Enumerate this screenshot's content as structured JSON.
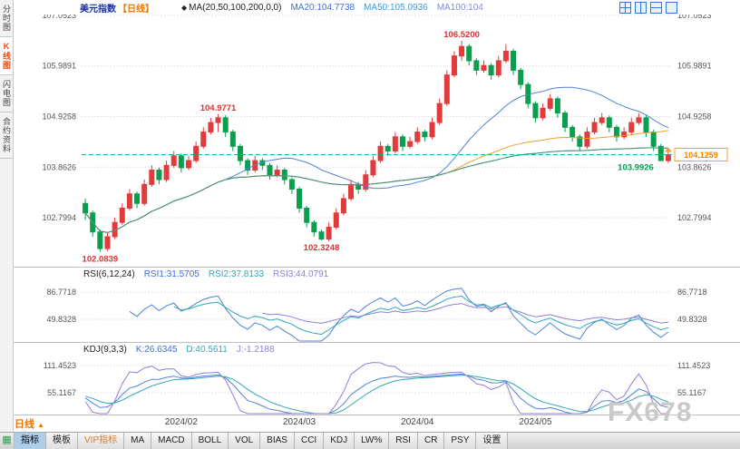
{
  "header": {
    "title": "美元指数",
    "period_tag": "【日线】",
    "ma_label": "MA(20,50,100,200,0,0)",
    "ma20": "MA20:104.7738",
    "ma50": "MA50:105.0936",
    "ma100": "MA100:104"
  },
  "sidebar": {
    "tabs": [
      {
        "label": "分时图",
        "active": false
      },
      {
        "label": "K线图",
        "active": true
      },
      {
        "label": "闪电图",
        "active": false
      },
      {
        "label": "合约资料",
        "active": false
      }
    ]
  },
  "indicators": {
    "rsi": {
      "title": "RSI(6,12,24)",
      "values": [
        "RSI1:31.5705",
        "RSI2:37.8133",
        "RSI3:44.0791"
      ]
    },
    "kdj": {
      "title": "KDJ(9,3,3)",
      "values": [
        "K:26.6345",
        "D:40.5611",
        "J:-1.2188"
      ]
    }
  },
  "footer": {
    "period_label": "日线",
    "watermark": "FX678"
  },
  "toolbar": {
    "tabs": [
      {
        "label": "指标",
        "active": true
      },
      {
        "label": "模板"
      },
      {
        "label": "VIP指标",
        "vip": true
      },
      {
        "label": "MA"
      },
      {
        "label": "MACD"
      },
      {
        "label": "BOLL"
      },
      {
        "label": "VOL"
      },
      {
        "label": "BIAS"
      },
      {
        "label": "CCI"
      },
      {
        "label": "KDJ"
      },
      {
        "label": "LW%"
      },
      {
        "label": "RSI"
      },
      {
        "label": "CR"
      },
      {
        "label": "PSY"
      },
      {
        "label": "设置"
      }
    ]
  },
  "chart_data": {
    "type": "candlestick",
    "title": "美元指数 日线",
    "y_ticks": [
      107.0523,
      105.9891,
      104.9258,
      103.8626,
      102.7994
    ],
    "rsi_ticks": [
      86.7718,
      49.8328
    ],
    "kdj_ticks": [
      111.4523,
      55.1167
    ],
    "x_ticks": [
      {
        "index": 13,
        "label": "2024/02"
      },
      {
        "index": 29,
        "label": "2024/03"
      },
      {
        "index": 45,
        "label": "2024/04"
      },
      {
        "index": 61,
        "label": "2024/05"
      }
    ],
    "current_price": 104.1259,
    "current_price_label": "104.1259",
    "annotations": [
      {
        "text": "106.5200",
        "index": 51,
        "price": 106.52,
        "color": "#e03030",
        "pos": "above"
      },
      {
        "text": "104.9771",
        "index": 18,
        "price": 104.9771,
        "color": "#e03030",
        "pos": "above"
      },
      {
        "text": "102.0839",
        "index": 2,
        "price": 102.0839,
        "color": "#e03030",
        "pos": "below"
      },
      {
        "text": "102.3248",
        "index": 32,
        "price": 102.3248,
        "color": "#e03030",
        "pos": "below"
      },
      {
        "text": "103.9926",
        "index": 78,
        "price": 103.9926,
        "color": "#00a050",
        "pos": "left"
      }
    ],
    "colors": {
      "up": "#e23b3b",
      "down": "#0a9e4e",
      "grid": "#dcdcdc",
      "axis_text": "#555555",
      "current": "#1aada0",
      "price_box": "#f0a030",
      "price_text": "#f08200",
      "ma": [
        "#4f82d8",
        "#f0a030",
        "#b06ad0",
        "#3a9a6a"
      ],
      "rsi": [
        "#4f82d8",
        "#30a8b8",
        "#8f7fd8"
      ],
      "kdj": [
        "#4f82d8",
        "#30a8b8",
        "#8f7fd8"
      ]
    },
    "ma_periods": [
      20,
      50,
      100,
      200
    ],
    "rsi_periods": [
      6,
      12,
      24
    ],
    "candles": [
      [
        103.1,
        103.2,
        102.75,
        102.9
      ],
      [
        102.9,
        102.95,
        102.4,
        102.5
      ],
      [
        102.5,
        102.55,
        102.0839,
        102.15
      ],
      [
        102.15,
        102.5,
        102.1,
        102.4
      ],
      [
        102.4,
        102.8,
        102.35,
        102.7
      ],
      [
        102.7,
        103.1,
        102.65,
        103.0
      ],
      [
        103.0,
        103.4,
        102.95,
        103.3
      ],
      [
        103.3,
        103.35,
        103.0,
        103.1
      ],
      [
        103.1,
        103.6,
        103.05,
        103.5
      ],
      [
        103.5,
        103.9,
        103.45,
        103.8
      ],
      [
        103.8,
        103.85,
        103.5,
        103.6
      ],
      [
        103.6,
        104.0,
        103.55,
        103.9
      ],
      [
        103.9,
        104.2,
        103.85,
        104.1
      ],
      [
        104.1,
        104.15,
        103.75,
        103.85
      ],
      [
        103.85,
        104.1,
        103.8,
        104.0
      ],
      [
        104.0,
        104.4,
        103.95,
        104.3
      ],
      [
        104.3,
        104.7,
        104.25,
        104.6
      ],
      [
        104.6,
        104.9,
        104.55,
        104.8
      ],
      [
        104.8,
        104.9771,
        104.6,
        104.9
      ],
      [
        104.9,
        104.95,
        104.5,
        104.6
      ],
      [
        104.6,
        104.65,
        104.2,
        104.3
      ],
      [
        104.3,
        104.35,
        103.9,
        104.0
      ],
      [
        104.0,
        104.05,
        103.7,
        103.8
      ],
      [
        103.8,
        104.1,
        103.75,
        104.0
      ],
      [
        104.0,
        104.05,
        103.8,
        103.9
      ],
      [
        103.9,
        103.95,
        103.6,
        103.7
      ],
      [
        103.7,
        103.9,
        103.65,
        103.8
      ],
      [
        103.8,
        103.85,
        103.5,
        103.6
      ],
      [
        103.6,
        103.65,
        103.3,
        103.4
      ],
      [
        103.4,
        103.45,
        102.9,
        103.0
      ],
      [
        103.0,
        103.05,
        102.6,
        102.7
      ],
      [
        102.7,
        102.75,
        102.4,
        102.5
      ],
      [
        102.5,
        102.55,
        102.3248,
        102.35
      ],
      [
        102.35,
        102.7,
        102.3,
        102.6
      ],
      [
        102.6,
        103.0,
        102.55,
        102.9
      ],
      [
        102.9,
        103.3,
        102.85,
        103.2
      ],
      [
        103.2,
        103.6,
        103.15,
        103.5
      ],
      [
        103.5,
        103.55,
        103.3,
        103.4
      ],
      [
        103.4,
        103.8,
        103.35,
        103.7
      ],
      [
        103.7,
        104.1,
        103.65,
        104.0
      ],
      [
        104.0,
        104.4,
        103.95,
        104.3
      ],
      [
        104.3,
        104.35,
        104.1,
        104.2
      ],
      [
        104.2,
        104.6,
        104.15,
        104.5
      ],
      [
        104.5,
        104.55,
        104.2,
        104.3
      ],
      [
        104.3,
        104.5,
        104.25,
        104.4
      ],
      [
        104.4,
        104.7,
        104.35,
        104.6
      ],
      [
        104.6,
        104.65,
        104.4,
        104.5
      ],
      [
        104.5,
        104.9,
        104.45,
        104.8
      ],
      [
        104.8,
        105.3,
        104.75,
        105.2
      ],
      [
        105.2,
        105.9,
        105.15,
        105.8
      ],
      [
        105.8,
        106.3,
        105.75,
        106.2
      ],
      [
        106.2,
        106.52,
        106.1,
        106.4
      ],
      [
        106.4,
        106.45,
        106.0,
        106.1
      ],
      [
        106.1,
        106.15,
        105.8,
        105.9
      ],
      [
        105.9,
        106.1,
        105.85,
        106.0
      ],
      [
        106.0,
        106.05,
        105.7,
        105.8
      ],
      [
        105.8,
        106.2,
        105.75,
        106.1
      ],
      [
        106.1,
        106.45,
        106.05,
        106.3
      ],
      [
        106.3,
        106.35,
        105.8,
        105.9
      ],
      [
        105.9,
        105.95,
        105.5,
        105.6
      ],
      [
        105.6,
        105.65,
        105.1,
        105.2
      ],
      [
        105.2,
        105.25,
        104.8,
        104.9
      ],
      [
        104.9,
        105.2,
        104.85,
        105.1
      ],
      [
        105.1,
        105.4,
        105.05,
        105.3
      ],
      [
        105.3,
        105.35,
        104.9,
        105.0
      ],
      [
        105.0,
        105.05,
        104.6,
        104.7
      ],
      [
        104.7,
        104.75,
        104.4,
        104.5
      ],
      [
        104.5,
        104.55,
        104.2,
        104.3
      ],
      [
        104.3,
        104.7,
        104.25,
        104.6
      ],
      [
        104.6,
        104.9,
        104.55,
        104.8
      ],
      [
        104.8,
        105.0,
        104.75,
        104.9
      ],
      [
        104.9,
        104.95,
        104.6,
        104.7
      ],
      [
        104.7,
        104.75,
        104.4,
        104.5
      ],
      [
        104.5,
        104.7,
        104.45,
        104.6
      ],
      [
        104.6,
        104.9,
        104.55,
        104.8
      ],
      [
        104.8,
        105.0,
        104.75,
        104.9
      ],
      [
        104.9,
        104.95,
        104.5,
        104.6
      ],
      [
        104.6,
        104.65,
        104.2,
        104.3
      ],
      [
        104.3,
        104.35,
        103.9926,
        104.0
      ],
      [
        104.0,
        104.25,
        103.95,
        104.1259
      ]
    ]
  }
}
